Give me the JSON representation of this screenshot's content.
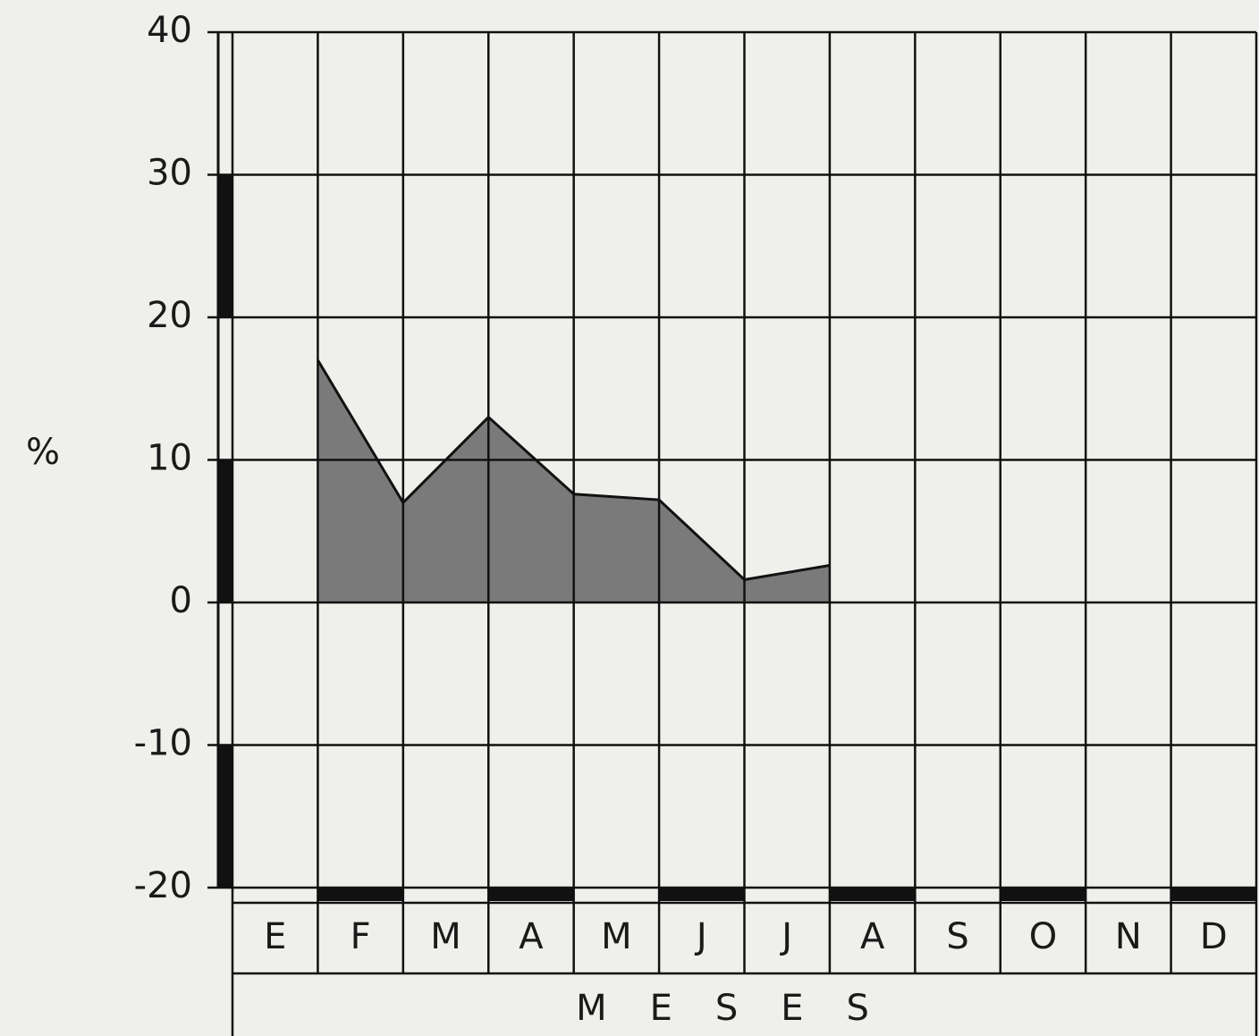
{
  "chart_data": {
    "type": "area",
    "ylabel": "%",
    "xlabel": "MESES",
    "categories": [
      "E",
      "F",
      "M",
      "A",
      "M",
      "J",
      "J",
      "A",
      "S",
      "O",
      "N",
      "D"
    ],
    "values": [
      17,
      7,
      13,
      7.6,
      7.2,
      1.6,
      2.6,
      null,
      null,
      null,
      null,
      null
    ],
    "color": "#7a7a7a",
    "ylim": [
      -20,
      40
    ],
    "yticks": [
      40,
      30,
      20,
      10,
      0,
      -10,
      -20
    ],
    "grid": true
  }
}
